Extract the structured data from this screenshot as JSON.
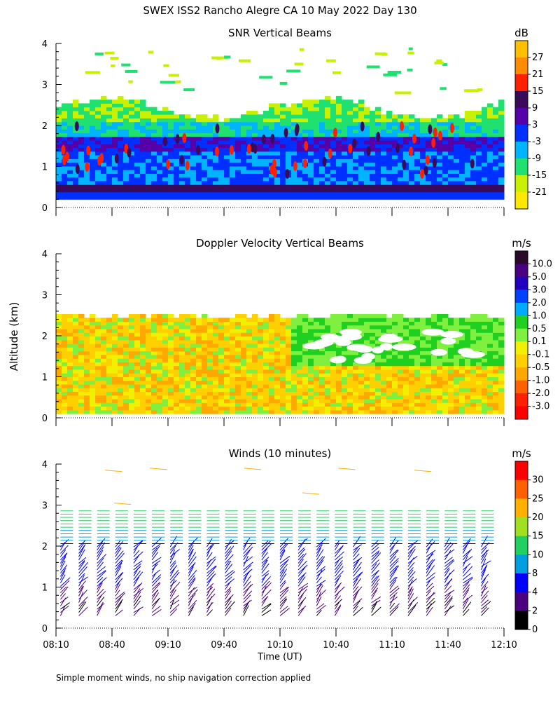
{
  "figure": {
    "title": "SWEX ISS2 Rancho Alegre CA  10 May 2022 Day 130",
    "ylabel": "Altitude (km)",
    "xlabel": "Time (UT)",
    "footnote": "Simple moment winds, no ship navigation correction applied"
  },
  "chart_data": [
    {
      "type": "heatmap",
      "title": "SNR Vertical Beams",
      "ylim": [
        0,
        4
      ],
      "yticks": [
        "0",
        "1",
        "2",
        "3",
        "4"
      ],
      "xlim": [
        "08:10",
        "12:10"
      ],
      "colorbar": {
        "unit": "dB",
        "labels": [
          "27",
          "21",
          "15",
          "9",
          "3",
          "-3",
          "-9",
          "-15",
          "-21"
        ],
        "colors": [
          "#ffc000",
          "#ff8c00",
          "#ff2000",
          "#3a0a5a",
          "#5500a8",
          "#0030ff",
          "#00b4ff",
          "#20e070",
          "#c8f000",
          "#ffe800"
        ]
      }
    },
    {
      "type": "heatmap",
      "title": "Doppler Velocity Vertical Beams",
      "ylim": [
        0,
        4
      ],
      "yticks": [
        "0",
        "1",
        "2",
        "3",
        "4"
      ],
      "xlim": [
        "08:10",
        "12:10"
      ],
      "colorbar": {
        "unit": "m/s",
        "labels": [
          "10.0",
          "5.0",
          "3.0",
          "2.0",
          "1.0",
          "0.5",
          "0.1",
          "-0.1",
          "-0.5",
          "-1.0",
          "-2.0",
          "-3.0"
        ],
        "colors": [
          "#2a0a2a",
          "#4a0080",
          "#2200c0",
          "#0040ff",
          "#00aaff",
          "#20d020",
          "#80f040",
          "#f0f000",
          "#ffd000",
          "#ffa800",
          "#ff6000",
          "#ff2000",
          "#ff0000"
        ]
      }
    },
    {
      "type": "scatter",
      "title": "Winds (10 minutes)",
      "ylim": [
        0,
        4
      ],
      "yticks": [
        "0",
        "1",
        "2",
        "3",
        "4"
      ],
      "xlim": [
        "08:10",
        "12:10"
      ],
      "xticks": [
        "08:10",
        "08:40",
        "09:10",
        "09:40",
        "10:10",
        "10:40",
        "11:10",
        "11:40",
        "12:10"
      ],
      "colorbar": {
        "unit": "m/s",
        "labels": [
          "30",
          "25",
          "20",
          "15",
          "10",
          "8",
          "4",
          "2",
          "0"
        ],
        "colors": [
          "#ff0000",
          "#ff6000",
          "#ffb000",
          "#a0e020",
          "#20d060",
          "#00a0e0",
          "#0000ff",
          "#4a0080",
          "#000000"
        ]
      }
    }
  ]
}
